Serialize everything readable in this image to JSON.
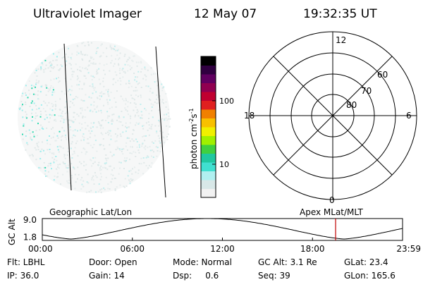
{
  "header": {
    "instrument": "Ultraviolet Imager",
    "date": "12 May 07",
    "time": "19:32:35 UT"
  },
  "colorbar": {
    "label": "photon cm",
    "label_sup1": "-2",
    "label_mid": "s",
    "label_sup2": "-1",
    "ticks": [
      {
        "value": 100,
        "label": "100"
      },
      {
        "value": 10,
        "label": "10"
      }
    ],
    "scale": "log",
    "range": [
      3,
      500
    ],
    "colors": [
      "#f2f2f2",
      "#d8e8e8",
      "#b0f0f0",
      "#40e0d0",
      "#20c8a0",
      "#40d040",
      "#a0f000",
      "#f0f000",
      "#f8c000",
      "#f08000",
      "#e02020",
      "#c00030",
      "#900050",
      "#600060",
      "#300040",
      "#000000"
    ]
  },
  "polar_plot": {
    "labels": {
      "top": "12",
      "left": "18",
      "right": "6",
      "bottom": "0"
    },
    "rings": [
      {
        "label": "60"
      },
      {
        "label": "70"
      },
      {
        "label": "80"
      }
    ]
  },
  "timeline": {
    "left_label": "Geographic Lat/Lon",
    "right_label": "Apex MLat/MLT",
    "axis_title": "GC Alt",
    "y_ticks": [
      {
        "value": 9.0,
        "label": "9.0"
      },
      {
        "value": 1.8,
        "label": "1.8"
      }
    ],
    "x_ticks": [
      {
        "hour": 0,
        "label": "00:00"
      },
      {
        "hour": 6,
        "label": "06:00"
      },
      {
        "hour": 12,
        "label": "12:00"
      },
      {
        "hour": 18,
        "label": "18:00"
      },
      {
        "hour": 24,
        "label": "23:59"
      }
    ],
    "marker_hour": 19.54,
    "marker_color": "#c00000"
  },
  "status": {
    "row1": [
      "Flt: LBHL",
      "Door: Open",
      "Mode: Normal",
      "GC Alt: 3.1 Re",
      "GLat: 23.4"
    ],
    "row2": [
      "IP: 36.0",
      "Gain: 14",
      "Dsp:     0.6",
      "Seq: 39",
      "GLon: 165.6"
    ]
  }
}
